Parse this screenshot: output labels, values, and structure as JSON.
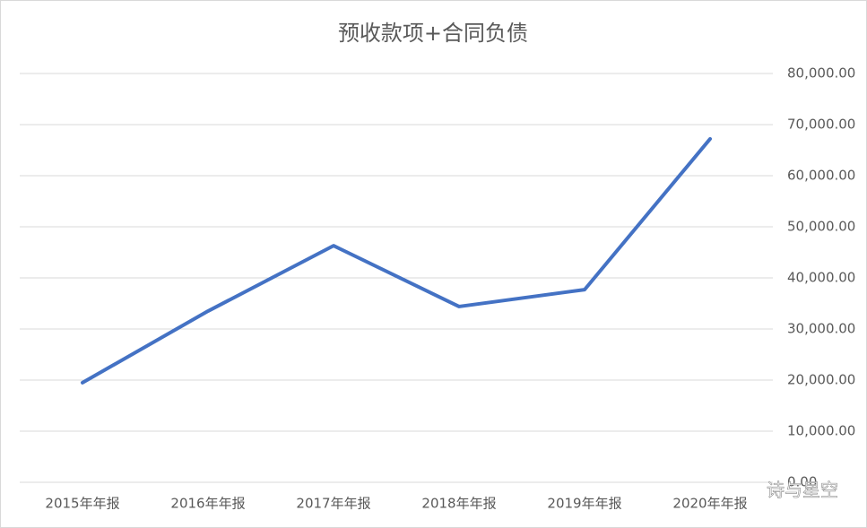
{
  "chart_data": {
    "type": "line",
    "title": "预收款项+合同负债",
    "categories": [
      "2015年年报",
      "2016年年报",
      "2017年年报",
      "2018年年报",
      "2019年年报",
      "2020年年报"
    ],
    "series": [
      {
        "name": "预收款项+合同负债",
        "color": "#4472c4",
        "values": [
          19500,
          33500,
          46300,
          34400,
          37700,
          67200
        ]
      }
    ],
    "ylim": [
      0,
      80000
    ],
    "yticks": [
      {
        "value": 0,
        "label": "0.00"
      },
      {
        "value": 10000,
        "label": "10,000.00"
      },
      {
        "value": 20000,
        "label": "20,000.00"
      },
      {
        "value": 30000,
        "label": "30,000.00"
      },
      {
        "value": 40000,
        "label": "40,000.00"
      },
      {
        "value": 50000,
        "label": "50,000.00"
      },
      {
        "value": 60000,
        "label": "60,000.00"
      },
      {
        "value": 70000,
        "label": "70,000.00"
      },
      {
        "value": 80000,
        "label": "80,000.00"
      }
    ],
    "grid": true,
    "y_axis_side": "right",
    "watermark": "诗与星空"
  }
}
